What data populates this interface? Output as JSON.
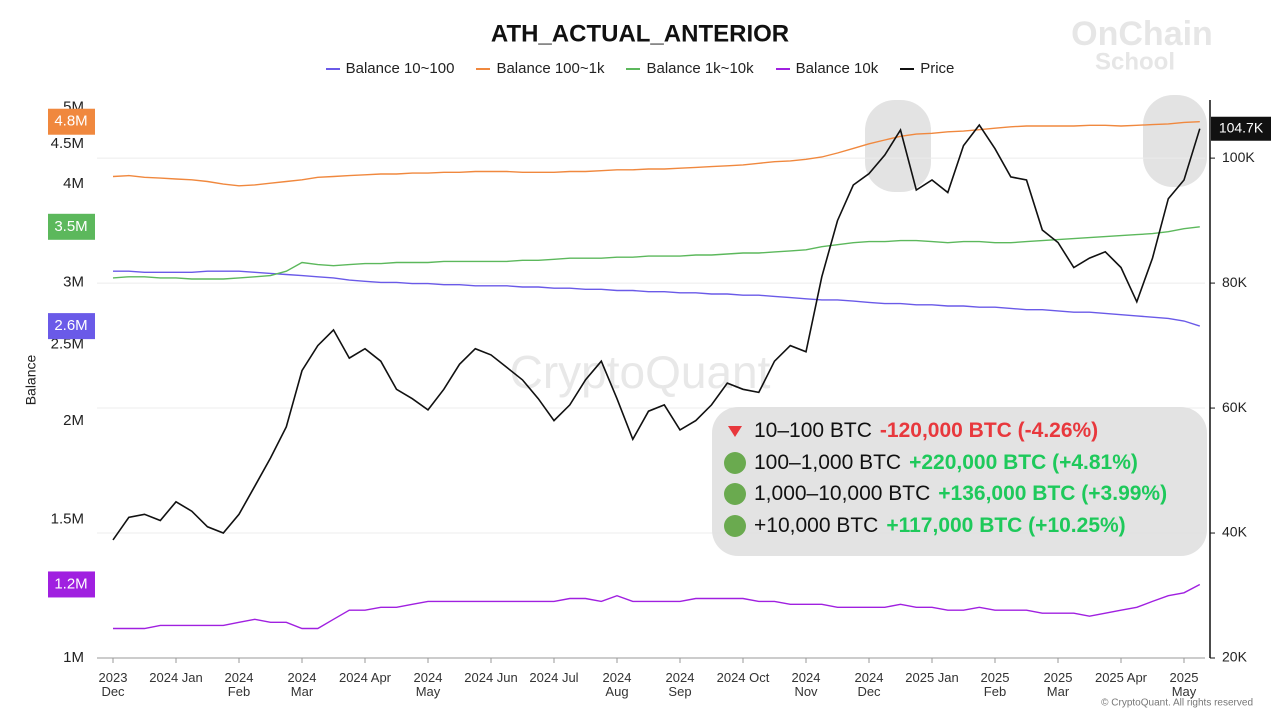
{
  "chart_data": {
    "type": "line",
    "title": "ATH_ACTUAL_ANTERIOR",
    "y_label": "Balance",
    "watermark": "CryptoQuant",
    "logo": [
      "OnChain",
      "School"
    ],
    "copyright": "© CryptoQuant. All rights reserved",
    "categories": [
      "2023\nDec",
      null,
      null,
      null,
      "2024 Jan",
      null,
      null,
      null,
      "2024\nFeb",
      null,
      null,
      null,
      "2024\nMar",
      null,
      null,
      null,
      "2024 Apr",
      null,
      null,
      null,
      "2024\nMay",
      null,
      null,
      null,
      "2024 Jun",
      null,
      null,
      null,
      "2024 Jul",
      null,
      null,
      null,
      "2024\nAug",
      null,
      null,
      null,
      "2024\nSep",
      null,
      null,
      null,
      "2024 Oct",
      null,
      null,
      null,
      "2024\nNov",
      null,
      null,
      null,
      "2024\nDec",
      null,
      null,
      null,
      "2025 Jan",
      null,
      null,
      null,
      "2025\nFeb",
      null,
      null,
      null,
      "2025\nMar",
      null,
      null,
      null,
      "2025 Apr",
      null,
      null,
      null,
      "2025\nMay",
      null
    ],
    "ylim": [
      1000000,
      5115000
    ],
    "log_scale": true,
    "yticks": [
      {
        "value": 1000000,
        "label": "1M"
      },
      {
        "value": 1500000,
        "label": "1.5M"
      },
      {
        "value": 2000000,
        "label": "2M"
      },
      {
        "value": 2500000,
        "label": "2.5M"
      },
      {
        "value": 3000000,
        "label": "3M"
      },
      {
        "value": 3500000,
        "label": "3.5M"
      },
      {
        "value": 4000000,
        "label": "4M"
      },
      {
        "value": 4500000,
        "label": "4.5M"
      },
      {
        "value": 5000000,
        "label": "5M"
      }
    ],
    "y2lim": [
      20000,
      109300
    ],
    "y2ticks": [
      {
        "value": 20000,
        "label": "20K"
      },
      {
        "value": 40000,
        "label": "40K"
      },
      {
        "value": 60000,
        "label": "60K"
      },
      {
        "value": 80000,
        "label": "80K"
      },
      {
        "value": 100000,
        "label": "100K"
      }
    ],
    "grid": true,
    "series": [
      {
        "name": "Balance 10~100",
        "color": "#6a5ae8",
        "values": [
          3100000,
          3100000,
          3090000,
          3090000,
          3090000,
          3090000,
          3100000,
          3100000,
          3100000,
          3090000,
          3080000,
          3070000,
          3060000,
          3050000,
          3040000,
          3020000,
          3010000,
          3000000,
          3000000,
          2990000,
          2990000,
          2980000,
          2980000,
          2970000,
          2970000,
          2970000,
          2960000,
          2960000,
          2950000,
          2950000,
          2940000,
          2940000,
          2930000,
          2930000,
          2920000,
          2920000,
          2910000,
          2910000,
          2900000,
          2900000,
          2890000,
          2890000,
          2880000,
          2870000,
          2860000,
          2850000,
          2850000,
          2840000,
          2830000,
          2820000,
          2820000,
          2810000,
          2810000,
          2800000,
          2800000,
          2790000,
          2790000,
          2780000,
          2770000,
          2770000,
          2760000,
          2750000,
          2750000,
          2740000,
          2730000,
          2720000,
          2710000,
          2700000,
          2680000,
          2640000
        ],
        "value_labels": [
          null,
          null,
          null,
          null,
          null,
          null,
          null,
          null,
          null,
          null,
          null,
          null,
          null,
          null,
          null,
          null,
          null,
          null,
          null,
          null,
          null,
          null,
          null,
          null,
          null,
          null,
          null,
          null,
          null,
          null,
          null,
          null,
          null,
          null,
          null,
          null,
          null,
          null,
          null,
          null,
          null,
          null,
          null,
          null,
          null,
          null,
          null,
          null,
          null,
          null,
          null,
          null,
          null,
          null,
          null,
          null,
          null,
          null,
          null,
          null,
          null,
          null,
          null,
          null,
          null,
          null,
          null,
          null,
          null,
          "2.6M"
        ]
      },
      {
        "name": "Balance 100~1k",
        "color": "#f0883e",
        "values": [
          4090000,
          4100000,
          4080000,
          4070000,
          4060000,
          4050000,
          4030000,
          4000000,
          3980000,
          3990000,
          4010000,
          4030000,
          4050000,
          4080000,
          4090000,
          4100000,
          4110000,
          4120000,
          4120000,
          4130000,
          4130000,
          4140000,
          4140000,
          4150000,
          4150000,
          4150000,
          4140000,
          4140000,
          4140000,
          4150000,
          4150000,
          4160000,
          4170000,
          4170000,
          4180000,
          4180000,
          4190000,
          4200000,
          4210000,
          4220000,
          4230000,
          4250000,
          4270000,
          4280000,
          4300000,
          4330000,
          4380000,
          4440000,
          4500000,
          4550000,
          4600000,
          4630000,
          4640000,
          4660000,
          4670000,
          4690000,
          4710000,
          4730000,
          4740000,
          4740000,
          4740000,
          4740000,
          4750000,
          4750000,
          4740000,
          4750000,
          4760000,
          4770000,
          4790000,
          4800000
        ],
        "value_labels": [
          null,
          null,
          null,
          null,
          null,
          null,
          null,
          null,
          null,
          null,
          null,
          null,
          null,
          null,
          null,
          null,
          null,
          null,
          null,
          null,
          null,
          null,
          null,
          null,
          null,
          null,
          null,
          null,
          null,
          null,
          null,
          null,
          null,
          null,
          null,
          null,
          null,
          null,
          null,
          null,
          null,
          null,
          null,
          null,
          null,
          null,
          null,
          null,
          null,
          null,
          null,
          null,
          null,
          null,
          null,
          null,
          null,
          null,
          null,
          null,
          null,
          null,
          null,
          null,
          null,
          null,
          null,
          null,
          null,
          "4.8M"
        ]
      },
      {
        "name": "Balance 1k~10k",
        "color": "#5cb85c",
        "values": [
          3040000,
          3050000,
          3050000,
          3040000,
          3040000,
          3030000,
          3030000,
          3030000,
          3040000,
          3050000,
          3060000,
          3100000,
          3180000,
          3160000,
          3150000,
          3160000,
          3170000,
          3170000,
          3180000,
          3180000,
          3180000,
          3190000,
          3190000,
          3190000,
          3190000,
          3190000,
          3200000,
          3200000,
          3210000,
          3220000,
          3220000,
          3220000,
          3230000,
          3230000,
          3240000,
          3240000,
          3240000,
          3250000,
          3250000,
          3260000,
          3270000,
          3270000,
          3280000,
          3290000,
          3300000,
          3330000,
          3350000,
          3370000,
          3380000,
          3380000,
          3390000,
          3390000,
          3380000,
          3370000,
          3380000,
          3380000,
          3370000,
          3370000,
          3380000,
          3390000,
          3400000,
          3410000,
          3420000,
          3430000,
          3440000,
          3450000,
          3460000,
          3480000,
          3510000,
          3530000
        ],
        "value_labels": [
          null,
          null,
          null,
          null,
          null,
          null,
          null,
          null,
          null,
          null,
          null,
          null,
          null,
          null,
          null,
          null,
          null,
          null,
          null,
          null,
          null,
          null,
          null,
          null,
          null,
          null,
          null,
          null,
          null,
          null,
          null,
          null,
          null,
          null,
          null,
          null,
          null,
          null,
          null,
          null,
          null,
          null,
          null,
          null,
          null,
          null,
          null,
          null,
          null,
          null,
          null,
          null,
          null,
          null,
          null,
          null,
          null,
          null,
          null,
          null,
          null,
          null,
          null,
          null,
          null,
          null,
          null,
          null,
          null,
          "3.5M"
        ]
      },
      {
        "name": "Balance 10k",
        "color": "#a020e0",
        "values": [
          1090000,
          1090000,
          1090000,
          1100000,
          1100000,
          1100000,
          1100000,
          1100000,
          1110000,
          1120000,
          1110000,
          1110000,
          1090000,
          1090000,
          1120000,
          1150000,
          1150000,
          1160000,
          1160000,
          1170000,
          1180000,
          1180000,
          1180000,
          1180000,
          1180000,
          1180000,
          1180000,
          1180000,
          1180000,
          1190000,
          1190000,
          1180000,
          1200000,
          1180000,
          1180000,
          1180000,
          1180000,
          1190000,
          1190000,
          1190000,
          1190000,
          1180000,
          1180000,
          1170000,
          1170000,
          1170000,
          1160000,
          1160000,
          1160000,
          1160000,
          1170000,
          1160000,
          1160000,
          1150000,
          1150000,
          1160000,
          1150000,
          1150000,
          1150000,
          1140000,
          1140000,
          1140000,
          1130000,
          1140000,
          1150000,
          1160000,
          1180000,
          1200000,
          1210000,
          1240000
        ],
        "value_labels": [
          null,
          null,
          null,
          null,
          null,
          null,
          null,
          null,
          null,
          null,
          null,
          null,
          null,
          null,
          null,
          null,
          null,
          null,
          null,
          null,
          null,
          null,
          null,
          null,
          null,
          null,
          null,
          null,
          null,
          null,
          null,
          null,
          null,
          null,
          null,
          null,
          null,
          null,
          null,
          null,
          null,
          null,
          null,
          null,
          null,
          null,
          null,
          null,
          null,
          null,
          null,
          null,
          null,
          null,
          null,
          null,
          null,
          null,
          null,
          null,
          null,
          null,
          null,
          null,
          null,
          null,
          null,
          null,
          null,
          "1.2M"
        ]
      },
      {
        "name": "Price",
        "color": "#111111",
        "axis": "y2",
        "values": [
          38900,
          42500,
          43000,
          42000,
          45000,
          43500,
          41000,
          40000,
          43000,
          47500,
          52000,
          57000,
          66000,
          70000,
          72500,
          68000,
          69500,
          67500,
          63000,
          61500,
          59700,
          63000,
          67000,
          69500,
          68500,
          66500,
          64500,
          61500,
          58000,
          60500,
          64500,
          67500,
          61500,
          55000,
          59500,
          60500,
          56500,
          58000,
          60500,
          64000,
          63000,
          62500,
          67500,
          70000,
          69000,
          81000,
          90000,
          95700,
          97500,
          100500,
          104500,
          94900,
          96500,
          94500,
          102000,
          105300,
          101500,
          97000,
          96500,
          88500,
          86500,
          82500,
          84000,
          85000,
          82500,
          77000,
          84000,
          93500,
          96500,
          104700
        ],
        "value_labels": [
          null,
          null,
          null,
          null,
          null,
          null,
          null,
          null,
          null,
          null,
          null,
          null,
          null,
          null,
          null,
          null,
          null,
          null,
          null,
          null,
          null,
          null,
          null,
          null,
          null,
          null,
          null,
          null,
          null,
          null,
          null,
          null,
          null,
          null,
          null,
          null,
          null,
          null,
          null,
          null,
          null,
          null,
          null,
          null,
          null,
          null,
          null,
          null,
          null,
          null,
          null,
          null,
          null,
          null,
          null,
          null,
          null,
          null,
          null,
          null,
          null,
          null,
          null,
          null,
          null,
          null,
          null,
          null,
          null,
          "104.7K"
        ]
      }
    ],
    "annotations": [
      {
        "trend": "down",
        "label": "10–100 BTC",
        "change": "-120,000 BTC (-4.26%)"
      },
      {
        "trend": "up",
        "label": "100–1,000 BTC",
        "change": "+220,000 BTC (+4.81%)"
      },
      {
        "trend": "up",
        "label": "1,000–10,000 BTC",
        "change": "+136,000 BTC (+3.99%)"
      },
      {
        "trend": "up",
        "label": "+10,000 BTC",
        "change": "+117,000 BTC (+10.25%)"
      }
    ]
  }
}
